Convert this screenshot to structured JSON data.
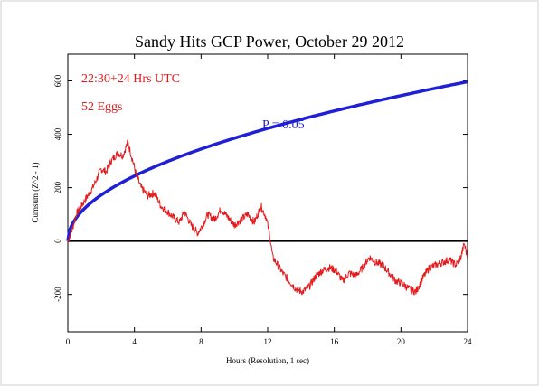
{
  "chart_data": {
    "type": "line",
    "title": "Sandy Hits GCP Power, October 29 2012",
    "xlabel": "Hours (Resolution, 1 sec)",
    "ylabel": "Cumsum (Z^2 - 1)",
    "xlim": [
      0,
      24
    ],
    "ylim": [
      -340,
      700
    ],
    "x_ticks": [
      0,
      4,
      8,
      12,
      16,
      20,
      24
    ],
    "y_ticks": [
      -200,
      0,
      200,
      400,
      600
    ],
    "annotations": {
      "time_range": "22:30+24 Hrs UTC",
      "eggs": "52 Eggs",
      "p_value": "P = 0.05"
    },
    "series": [
      {
        "name": "Cumsum",
        "color": "#e41a1c",
        "x": [
          0,
          0.25,
          0.5,
          1.0,
          1.5,
          2.0,
          2.3,
          2.6,
          3.0,
          3.3,
          3.6,
          3.9,
          4.1,
          4.4,
          4.8,
          5.2,
          5.6,
          6.0,
          6.3,
          6.7,
          7.0,
          7.4,
          7.8,
          8.1,
          8.4,
          8.8,
          9.2,
          9.6,
          10.0,
          10.4,
          10.8,
          11.2,
          11.6,
          11.9,
          12.1,
          12.3,
          12.6,
          12.9,
          13.3,
          13.7,
          14.1,
          14.5,
          14.9,
          15.3,
          15.7,
          16.1,
          16.5,
          16.9,
          17.3,
          17.7,
          18.1,
          18.5,
          18.9,
          19.3,
          19.7,
          20.1,
          20.5,
          20.9,
          21.3,
          21.7,
          22.1,
          22.5,
          22.9,
          23.3,
          23.6,
          23.8,
          24.0
        ],
        "values": [
          0,
          40,
          100,
          150,
          200,
          270,
          260,
          300,
          330,
          320,
          370,
          300,
          250,
          200,
          170,
          180,
          130,
          110,
          90,
          70,
          110,
          60,
          30,
          60,
          100,
          80,
          120,
          90,
          60,
          80,
          100,
          70,
          130,
          90,
          30,
          -60,
          -90,
          -120,
          -150,
          -180,
          -190,
          -170,
          -130,
          -110,
          -100,
          -110,
          -150,
          -120,
          -130,
          -100,
          -60,
          -80,
          -90,
          -120,
          -150,
          -160,
          -180,
          -190,
          -140,
          -100,
          -90,
          -80,
          -70,
          -90,
          -60,
          -10,
          -60
        ]
      },
      {
        "name": "P = 0.05",
        "color": "#1f1fd6",
        "function": "1.96 * sqrt(2 * eggs * seconds)",
        "x": [
          0,
          0.1,
          0.25,
          0.5,
          1,
          2,
          3,
          4,
          6,
          8,
          10,
          12,
          14,
          16,
          18,
          20,
          22,
          24
        ],
        "values": [
          0,
          39,
          61,
          86,
          122,
          172,
          211,
          244,
          299,
          345,
          386,
          423,
          456,
          488,
          517,
          545,
          572,
          597
        ]
      }
    ],
    "colors": {
      "cumsum": "#e41a1c",
      "envelope": "#1f1fd6",
      "zero_line": "#000000"
    }
  }
}
